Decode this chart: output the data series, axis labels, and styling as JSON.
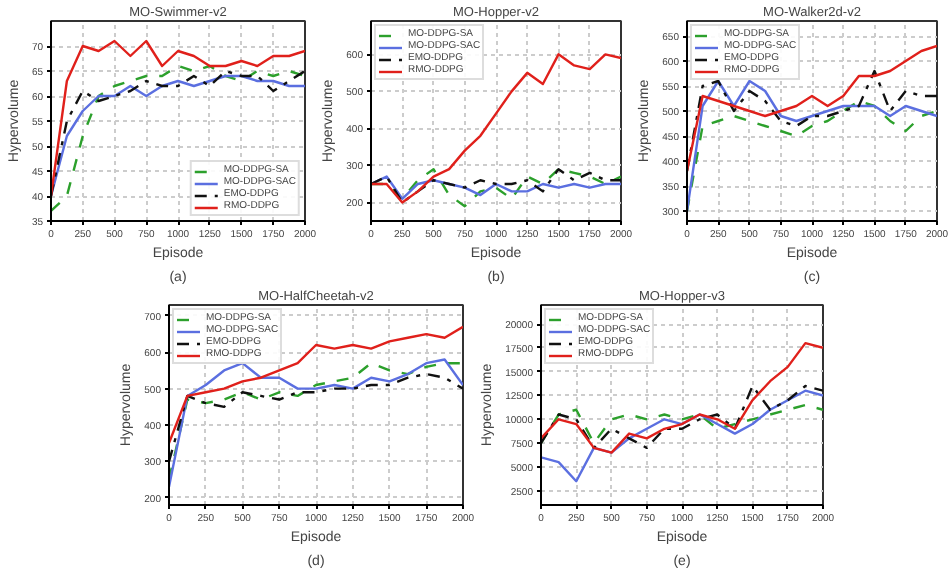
{
  "chart_data": [
    {
      "type": "line",
      "title": "MO-Swimmer-v2",
      "xlabel": "Episode",
      "ylabel": "Hypervolume",
      "annotations": [
        "(a)"
      ],
      "x": [
        0,
        125,
        250,
        375,
        500,
        625,
        750,
        875,
        1000,
        1125,
        1250,
        1375,
        1500,
        1625,
        1750,
        1875,
        2000
      ],
      "xlim": [
        0,
        2000
      ],
      "xticks": [
        0,
        250,
        500,
        750,
        1000,
        1250,
        1500,
        1750,
        2000
      ],
      "ylim": [
        35,
        75
      ],
      "yticks": [
        35,
        40,
        45,
        50,
        55,
        60,
        65,
        70
      ],
      "grid": true,
      "legend": "bottom right",
      "series": [
        {
          "name": "MO-DDPG-SA",
          "color": "#2ca02c",
          "line_style": "dashed",
          "values": [
            37,
            40,
            52,
            60,
            62,
            63,
            64,
            64,
            66,
            65,
            66,
            64,
            63,
            65,
            64,
            65,
            64
          ]
        },
        {
          "name": "MO-DDPG-SAC",
          "color": "#5b6fe0",
          "line_style": "solid",
          "values": [
            40,
            52,
            57,
            60,
            60,
            62,
            60,
            62,
            63,
            62,
            63,
            64,
            64,
            63,
            63,
            62,
            62
          ]
        },
        {
          "name": "EMO-DDPG",
          "color": "#111111",
          "line_style": "dashdot",
          "values": [
            40,
            55,
            61,
            59,
            60,
            61,
            63,
            62,
            62,
            64,
            62,
            65,
            64,
            64,
            61,
            63,
            65
          ]
        },
        {
          "name": "RMO-DDPG",
          "color": "#e0201b",
          "line_style": "solid",
          "values": [
            40,
            63,
            70,
            69,
            71,
            68,
            71,
            66,
            69,
            68,
            66,
            66,
            67,
            66,
            68,
            68,
            69
          ]
        }
      ]
    },
    {
      "type": "line",
      "title": "MO-Hopper-v2",
      "xlabel": "Episode",
      "ylabel": "Hypervolume",
      "annotations": [
        "(b)"
      ],
      "x": [
        0,
        125,
        250,
        375,
        500,
        625,
        750,
        875,
        1000,
        1125,
        1250,
        1375,
        1500,
        1625,
        1750,
        1875,
        2000
      ],
      "xlim": [
        0,
        2000
      ],
      "xticks": [
        0,
        250,
        500,
        750,
        1000,
        1250,
        1500,
        1750,
        2000
      ],
      "ylim": [
        150,
        690
      ],
      "yticks": [
        200,
        300,
        400,
        500,
        600
      ],
      "grid": true,
      "legend": "top left",
      "series": [
        {
          "name": "MO-DDPG-SA",
          "color": "#2ca02c",
          "line_style": "dashed",
          "values": [
            250,
            250,
            210,
            260,
            290,
            220,
            190,
            230,
            240,
            210,
            270,
            250,
            290,
            280,
            270,
            250,
            270
          ]
        },
        {
          "name": "MO-DDPG-SAC",
          "color": "#5b6fe0",
          "line_style": "solid",
          "values": [
            250,
            270,
            210,
            250,
            260,
            250,
            240,
            220,
            250,
            230,
            230,
            250,
            240,
            250,
            240,
            250,
            250
          ]
        },
        {
          "name": "EMO-DDPG",
          "color": "#111111",
          "line_style": "dashdot",
          "values": [
            250,
            270,
            200,
            230,
            260,
            250,
            240,
            260,
            250,
            250,
            260,
            230,
            290,
            260,
            280,
            260,
            260
          ]
        },
        {
          "name": "RMO-DDPG",
          "color": "#e0201b",
          "line_style": "solid",
          "values": [
            250,
            250,
            200,
            230,
            270,
            290,
            340,
            380,
            440,
            500,
            550,
            520,
            600,
            570,
            560,
            600,
            590
          ]
        }
      ]
    },
    {
      "type": "line",
      "title": "MO-Walker2d-v2",
      "xlabel": "Episode",
      "ylabel": "Hypervolume",
      "annotations": [
        "(c)"
      ],
      "x": [
        0,
        125,
        250,
        375,
        500,
        625,
        750,
        875,
        1000,
        1125,
        1250,
        1375,
        1500,
        1625,
        1750,
        1875,
        2000
      ],
      "xlim": [
        0,
        2000
      ],
      "xticks": [
        0,
        250,
        500,
        750,
        1000,
        1250,
        1500,
        1750,
        2000
      ],
      "ylim": [
        280,
        680
      ],
      "yticks": [
        300,
        350,
        400,
        450,
        500,
        550,
        600,
        650
      ],
      "grid": true,
      "legend": "top left",
      "series": [
        {
          "name": "MO-DDPG-SA",
          "color": "#2ca02c",
          "line_style": "dashed",
          "values": [
            300,
            470,
            480,
            490,
            480,
            470,
            460,
            450,
            470,
            480,
            500,
            520,
            510,
            480,
            460,
            490,
            500
          ]
        },
        {
          "name": "MO-DDPG-SAC",
          "color": "#5b6fe0",
          "line_style": "solid",
          "values": [
            300,
            510,
            560,
            510,
            560,
            540,
            490,
            480,
            490,
            500,
            510,
            510,
            510,
            490,
            510,
            500,
            490
          ]
        },
        {
          "name": "EMO-DDPG",
          "color": "#111111",
          "line_style": "dashdot",
          "values": [
            380,
            550,
            560,
            500,
            540,
            520,
            480,
            470,
            490,
            490,
            500,
            510,
            580,
            500,
            540,
            530,
            530
          ]
        },
        {
          "name": "RMO-DDPG",
          "color": "#e0201b",
          "line_style": "solid",
          "values": [
            380,
            530,
            520,
            510,
            500,
            490,
            500,
            510,
            530,
            510,
            530,
            570,
            570,
            580,
            600,
            620,
            630
          ]
        }
      ]
    },
    {
      "type": "line",
      "title": "MO-HalfCheetah-v2",
      "xlabel": "Episode",
      "ylabel": "Hypervolume",
      "annotations": [
        "(d)"
      ],
      "x": [
        0,
        125,
        250,
        375,
        500,
        625,
        750,
        875,
        1000,
        1125,
        1250,
        1375,
        1500,
        1625,
        1750,
        1875,
        2000
      ],
      "xlim": [
        0,
        2000
      ],
      "xticks": [
        0,
        250,
        500,
        750,
        1000,
        1250,
        1500,
        1750,
        2000
      ],
      "ylim": [
        180,
        730
      ],
      "yticks": [
        200,
        300,
        400,
        500,
        600,
        700
      ],
      "grid": true,
      "legend": "top left",
      "series": [
        {
          "name": "MO-DDPG-SA",
          "color": "#2ca02c",
          "line_style": "dashed",
          "values": [
            250,
            470,
            460,
            470,
            490,
            470,
            490,
            480,
            510,
            520,
            530,
            570,
            550,
            540,
            560,
            570,
            570
          ]
        },
        {
          "name": "MO-DDPG-SAC",
          "color": "#5b6fe0",
          "line_style": "solid",
          "values": [
            230,
            480,
            510,
            550,
            570,
            530,
            530,
            500,
            500,
            510,
            500,
            530,
            520,
            540,
            570,
            580,
            510
          ]
        },
        {
          "name": "EMO-DDPG",
          "color": "#111111",
          "line_style": "dashdot",
          "values": [
            300,
            480,
            460,
            450,
            490,
            480,
            470,
            490,
            490,
            500,
            500,
            510,
            510,
            530,
            540,
            530,
            500
          ]
        },
        {
          "name": "RMO-DDPG",
          "color": "#e0201b",
          "line_style": "solid",
          "values": [
            350,
            480,
            490,
            500,
            520,
            530,
            550,
            570,
            620,
            610,
            620,
            610,
            630,
            640,
            650,
            640,
            670
          ]
        }
      ]
    },
    {
      "type": "line",
      "title": "MO-Hopper-v3",
      "xlabel": "Episode",
      "ylabel": "Hypervolume",
      "annotations": [
        "(e)"
      ],
      "x": [
        0,
        125,
        250,
        375,
        500,
        625,
        750,
        875,
        1000,
        1125,
        1250,
        1375,
        1500,
        1625,
        1750,
        1875,
        2000
      ],
      "xlim": [
        0,
        2000
      ],
      "xticks": [
        0,
        250,
        500,
        750,
        1000,
        1250,
        1500,
        1750,
        2000
      ],
      "ylim": [
        1000,
        22000
      ],
      "yticks": [
        2500,
        5000,
        7500,
        10000,
        12500,
        15000,
        17500,
        20000
      ],
      "grid": true,
      "legend": "top left",
      "series": [
        {
          "name": "MO-DDPG-SA",
          "color": "#2ca02c",
          "line_style": "dashed",
          "values": [
            7500,
            10500,
            11000,
            7500,
            10000,
            10500,
            10000,
            10500,
            10000,
            10500,
            9000,
            9500,
            10000,
            10500,
            11000,
            11500,
            11000
          ]
        },
        {
          "name": "MO-DDPG-SAC",
          "color": "#5b6fe0",
          "line_style": "solid",
          "values": [
            6000,
            5500,
            3500,
            7000,
            6500,
            8000,
            9000,
            10000,
            9500,
            10500,
            9500,
            8500,
            9500,
            11000,
            12000,
            13000,
            12500
          ]
        },
        {
          "name": "EMO-DDPG",
          "color": "#111111",
          "line_style": "dashdot",
          "values": [
            7500,
            10500,
            10000,
            7000,
            9000,
            8000,
            7000,
            9000,
            9000,
            10000,
            10500,
            9000,
            13500,
            11000,
            12000,
            13500,
            13000
          ]
        },
        {
          "name": "RMO-DDPG",
          "color": "#e0201b",
          "line_style": "solid",
          "values": [
            8000,
            10000,
            9500,
            7000,
            6500,
            8500,
            8000,
            9000,
            9500,
            10500,
            10000,
            9000,
            12000,
            14000,
            15500,
            18000,
            17500
          ]
        }
      ]
    }
  ]
}
